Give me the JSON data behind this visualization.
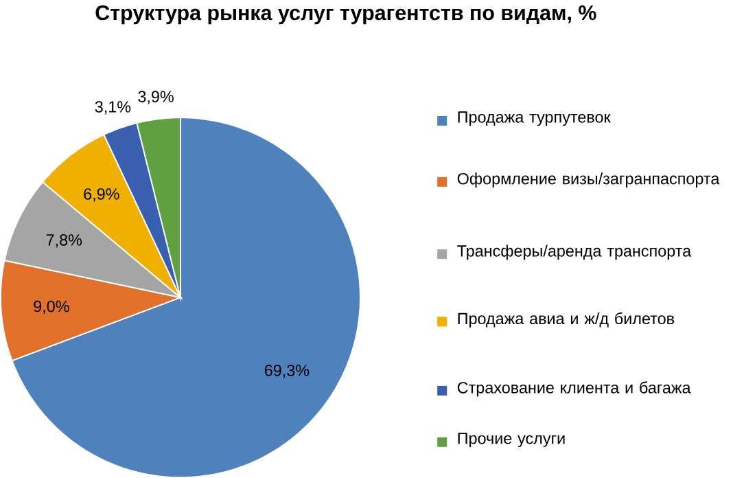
{
  "chart_data": {
    "type": "pie",
    "title": "Структура рынка услуг турагентств по видам, %",
    "categories": [
      "Продажа турпутевок",
      "Оформление визы/загранпаспорта",
      "Трансферы/аренда транспорта",
      "Продажа авиа и ж/д билетов",
      "Страхование клиента и багажа",
      "Прочие услуги"
    ],
    "values": [
      69.3,
      9.0,
      7.8,
      6.9,
      3.1,
      3.9
    ],
    "value_labels": [
      "69,3%",
      "9,0%",
      "7,8%",
      "6,9%",
      "3,1%",
      "3,9%"
    ],
    "colors": [
      "#4f81bd",
      "#e0702a",
      "#a5a5a5",
      "#f0b000",
      "#3a5fae",
      "#5fa040"
    ],
    "legend": "right"
  }
}
